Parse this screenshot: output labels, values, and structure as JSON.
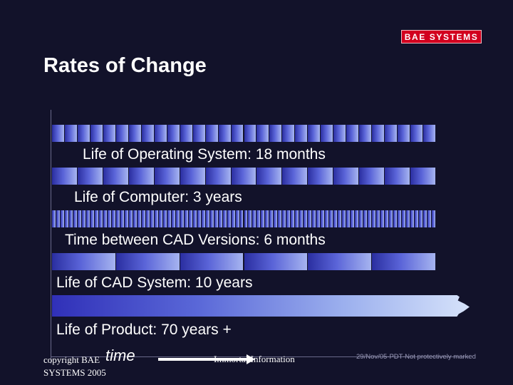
{
  "header": {
    "logo_text": "BAE SYSTEMS",
    "title": "Rates of Change"
  },
  "timelines": [
    {
      "label": "Life of Operating System: 18 months",
      "segments": 30
    },
    {
      "label": "Life of Computer: 3 years",
      "segments": 15
    },
    {
      "label": "Time between CAD Versions: 6 months",
      "segments": 90
    },
    {
      "label": "Life of CAD System: 10 years",
      "segments": 6
    },
    {
      "label": "Life of Product: 70 years +",
      "segments": 1
    }
  ],
  "footer": {
    "copyright": "copyright BAE SYSTEMS 2005",
    "axis_label": "time",
    "info": "Immortal Information",
    "marking": "29/Nov/05-PDT-Not protectively marked"
  },
  "colors": {
    "background": "#12122a",
    "logo_red": "#d2001e",
    "bar_dark": "#2a2ea0",
    "bar_light": "#a6b4f0"
  }
}
